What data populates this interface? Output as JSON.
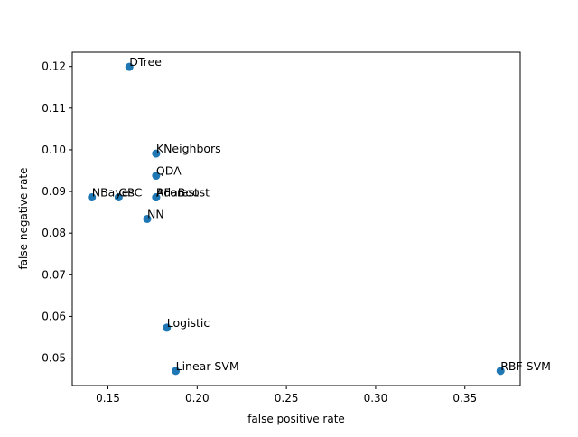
{
  "chart_data": {
    "type": "scatter",
    "title": "",
    "xlabel": "false positive rate",
    "ylabel": "false negative rate",
    "xlim": [
      0.13,
      0.381
    ],
    "ylim": [
      0.0434,
      0.1234
    ],
    "xticks": [
      0.15,
      0.2,
      0.25,
      0.3,
      0.35
    ],
    "xtick_labels": [
      "0.15",
      "0.20",
      "0.25",
      "0.30",
      "0.35"
    ],
    "yticks": [
      0.05,
      0.06,
      0.07,
      0.08,
      0.09,
      0.1,
      0.11,
      0.12
    ],
    "ytick_labels": [
      "0.05",
      "0.06",
      "0.07",
      "0.08",
      "0.09",
      "0.10",
      "0.11",
      "0.12"
    ],
    "grid": false,
    "marker_color": "#1f77b4",
    "points": [
      {
        "label": "DTree",
        "x": 0.162,
        "y": 0.1199
      },
      {
        "label": "KNeighbors",
        "x": 0.177,
        "y": 0.0991
      },
      {
        "label": "QDA",
        "x": 0.177,
        "y": 0.0938
      },
      {
        "label": "RForest",
        "x": 0.177,
        "y": 0.0886
      },
      {
        "label": "AdaBoost",
        "x": 0.177,
        "y": 0.0886
      },
      {
        "label": "NBayes",
        "x": 0.141,
        "y": 0.0886
      },
      {
        "label": "GPC",
        "x": 0.156,
        "y": 0.0886
      },
      {
        "label": "NN",
        "x": 0.172,
        "y": 0.0834
      },
      {
        "label": "Logistic",
        "x": 0.183,
        "y": 0.0573
      },
      {
        "label": "Linear SVM",
        "x": 0.188,
        "y": 0.0469
      },
      {
        "label": "RBF SVM",
        "x": 0.37,
        "y": 0.0469
      }
    ]
  }
}
